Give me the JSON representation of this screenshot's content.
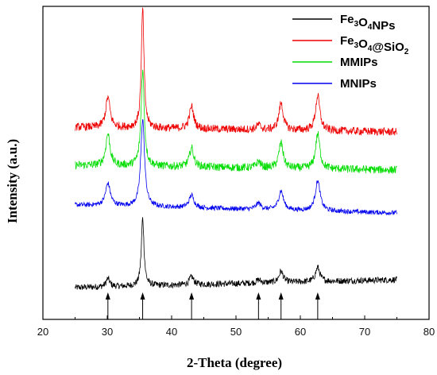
{
  "chart_data": {
    "type": "line",
    "xlabel": "2-Theta (degree)",
    "ylabel": "Intensity (a.u.)",
    "xlim": [
      20,
      80
    ],
    "xticks": [
      20,
      30,
      40,
      50,
      60,
      70,
      80
    ],
    "y_ticks_shown": false,
    "grid": false,
    "legend_position": "top-right",
    "x_range_measured": [
      25,
      75
    ],
    "series": [
      {
        "name": "Fe3O4NPs",
        "legend_parts": [
          [
            "Fe",
            ""
          ],
          [
            "3",
            "sub"
          ],
          [
            "O",
            ""
          ],
          [
            "4",
            "sub"
          ],
          [
            "NPs",
            ""
          ]
        ],
        "color": "#000000",
        "offset": 0,
        "baseline_start": 10,
        "baseline_end": 20,
        "noise": 4,
        "peaks": [
          [
            30.1,
            10,
            0.35
          ],
          [
            35.5,
            85,
            0.25
          ],
          [
            43.1,
            10,
            0.4
          ],
          [
            53.5,
            4,
            0.4
          ],
          [
            57.0,
            14,
            0.4
          ],
          [
            62.7,
            18,
            0.4
          ]
        ]
      },
      {
        "name": "MNIPs",
        "legend_parts": [
          [
            "MNIPs",
            ""
          ]
        ],
        "color": "#0000ee",
        "offset": 100,
        "baseline_start": 14,
        "baseline_end": 4,
        "noise": 3,
        "peaks": [
          [
            30.1,
            28,
            0.45
          ],
          [
            35.5,
            110,
            0.35
          ],
          [
            43.1,
            16,
            0.45
          ],
          [
            53.5,
            8,
            0.45
          ],
          [
            57.0,
            24,
            0.45
          ],
          [
            62.7,
            38,
            0.45
          ]
        ]
      },
      {
        "name": "MMIPs",
        "legend_parts": [
          [
            "MMIPs",
            ""
          ]
        ],
        "color": "#00dd00",
        "offset": 158,
        "baseline_start": 6,
        "baseline_end": 0,
        "noise": 5,
        "peaks": [
          [
            30.1,
            40,
            0.4
          ],
          [
            35.5,
            120,
            0.3
          ],
          [
            43.1,
            24,
            0.4
          ],
          [
            53.5,
            8,
            0.4
          ],
          [
            57.0,
            32,
            0.4
          ],
          [
            62.7,
            44,
            0.4
          ]
        ]
      },
      {
        "name": "Fe3O4@SiO2",
        "legend_parts": [
          [
            "Fe",
            ""
          ],
          [
            "3",
            "sub"
          ],
          [
            "O",
            ""
          ],
          [
            "4",
            "sub"
          ],
          [
            "@SiO",
            ""
          ],
          [
            "2",
            "sub"
          ]
        ],
        "color": "#ee0000",
        "offset": 206,
        "baseline_start": 6,
        "baseline_end": 0,
        "noise": 5,
        "peaks": [
          [
            30.1,
            38,
            0.4
          ],
          [
            35.5,
            150,
            0.25
          ],
          [
            43.1,
            28,
            0.4
          ],
          [
            53.5,
            6,
            0.4
          ],
          [
            57.0,
            34,
            0.4
          ],
          [
            62.7,
            44,
            0.4
          ]
        ]
      }
    ],
    "legend_order": [
      "Fe3O4NPs",
      "Fe3O4@SiO2",
      "MMIPs",
      "MNIPs"
    ],
    "reference_markers_x": [
      30.1,
      35.5,
      43.1,
      53.5,
      57.0,
      62.7
    ]
  }
}
